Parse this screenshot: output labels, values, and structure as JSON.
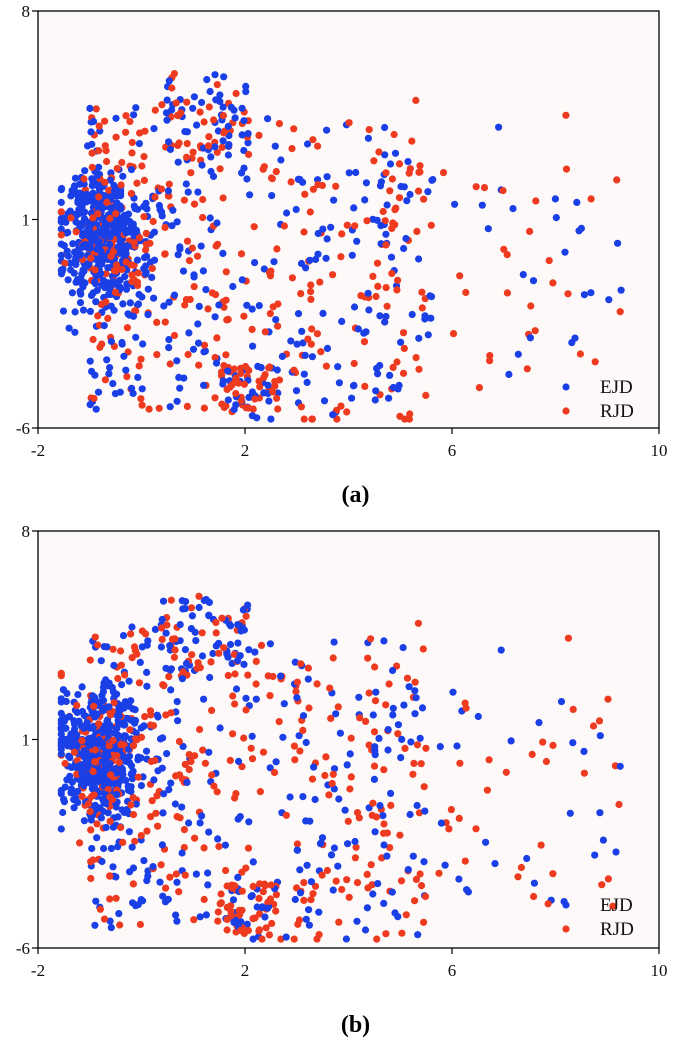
{
  "chart_data": [
    {
      "panel_label": "(a)",
      "type": "scatter",
      "xlim": [
        -2,
        10
      ],
      "ylim": [
        -6,
        8
      ],
      "xticks": [
        -2,
        2,
        6,
        10
      ],
      "yticks": [
        -6,
        1,
        8
      ],
      "grid": false,
      "legend_placement": "bottom-right",
      "series": [
        {
          "name": "EJD",
          "color": "#1a3fe6"
        },
        {
          "name": "RJD",
          "color": "#ee3a1f"
        }
      ],
      "colors": {
        "background": "#fdf9f9",
        "axis": "#000000"
      }
    },
    {
      "panel_label": "(b)",
      "type": "scatter",
      "xlim": [
        -2,
        10
      ],
      "ylim": [
        -6,
        8
      ],
      "xticks": [
        -2,
        2,
        6,
        10
      ],
      "yticks": [
        -6,
        1,
        8
      ],
      "grid": false,
      "legend_placement": "bottom-right",
      "series": [
        {
          "name": "EJD",
          "color": "#1a3fe6"
        },
        {
          "name": "RJD",
          "color": "#ee3a1f"
        }
      ],
      "colors": {
        "background": "#fdf9f9",
        "axis": "#000000"
      }
    }
  ]
}
